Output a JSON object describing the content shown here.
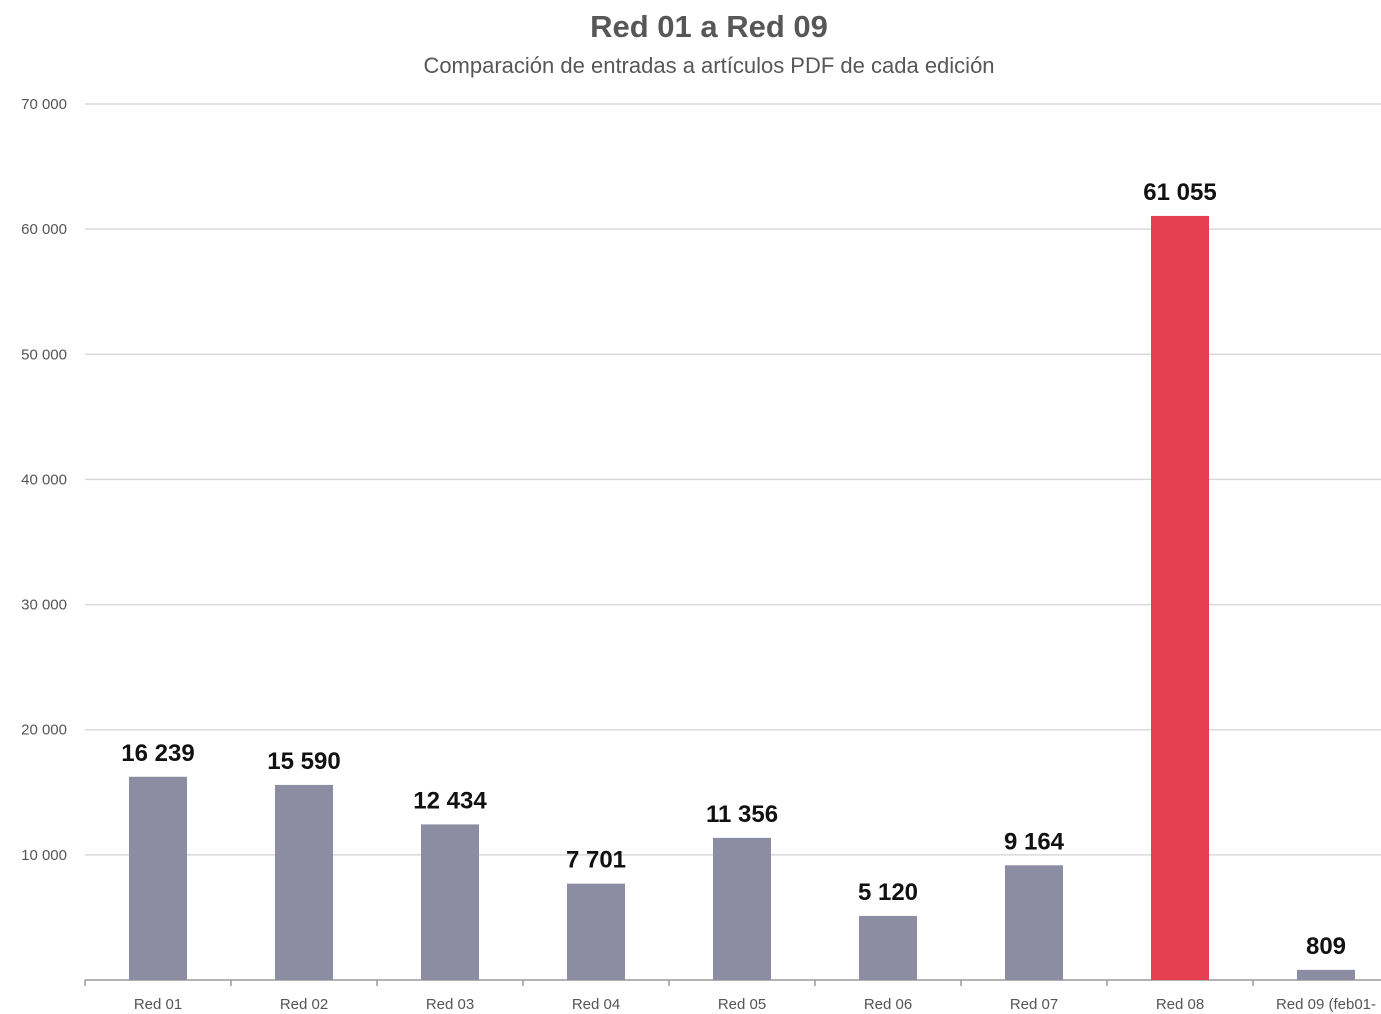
{
  "chart_data": {
    "type": "bar",
    "title": "Red 01 a Red 09",
    "subtitle": "Comparación de entradas a artículos PDF de cada edición",
    "categories": [
      "Red 01",
      "Red 02",
      "Red 03",
      "Red 04",
      "Red 05",
      "Red 06",
      "Red 07",
      "Red 08",
      "Red 09 (feb01-"
    ],
    "values": [
      16239,
      15590,
      12434,
      7701,
      11356,
      5120,
      9164,
      61055,
      809
    ],
    "data_labels": [
      "16 239",
      "15 590",
      "12 434",
      "7 701",
      "11 356",
      "5 120",
      "9 164",
      "61 055",
      "809"
    ],
    "ylim": [
      0,
      70000
    ],
    "yticks": [
      10000,
      20000,
      30000,
      40000,
      50000,
      60000,
      70000
    ],
    "ytick_labels": [
      "10 000",
      "20 000",
      "30 000",
      "40 000",
      "50 000",
      "60 000",
      "70 000"
    ],
    "grid": true,
    "legend": "none",
    "bar_colors": [
      "#8c8ca3",
      "#8c8ca3",
      "#8c8ca3",
      "#8c8ca3",
      "#8c8ca3",
      "#8c8ca3",
      "#8c8ca3",
      "#e5404f",
      "#8c8ca3"
    ]
  },
  "colors": {
    "bar": "#8c8ca3",
    "highlight": "#e5404f",
    "gridline": "#d9d9d9",
    "axis": "#9a9a9a",
    "text": "#555555"
  }
}
